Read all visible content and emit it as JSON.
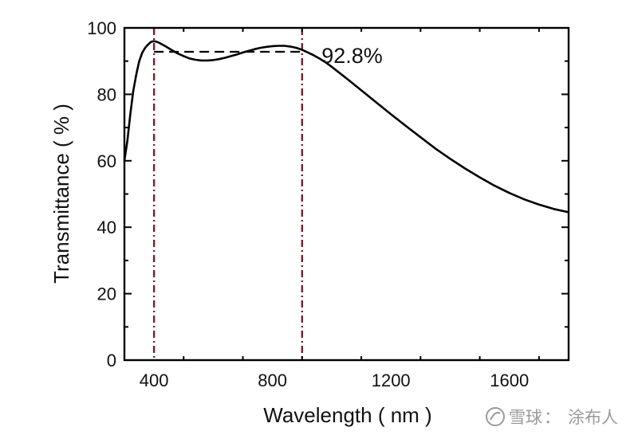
{
  "chart_data": {
    "type": "line",
    "xlabel": "Wavelength ( nm )",
    "ylabel": "Transmittance ( % )",
    "xlim": [
      300,
      1800
    ],
    "ylim": [
      0,
      100
    ],
    "xticks": [
      400,
      800,
      1200,
      1600
    ],
    "yticks": [
      0,
      20,
      40,
      60,
      80,
      100
    ],
    "grid": false,
    "series": [
      {
        "color": "#000000",
        "x": [
          300,
          310,
          320,
          330,
          340,
          350,
          360,
          370,
          380,
          390,
          400,
          410,
          420,
          440,
          460,
          480,
          500,
          520,
          540,
          560,
          580,
          600,
          620,
          640,
          660,
          680,
          700,
          720,
          740,
          760,
          780,
          800,
          820,
          840,
          860,
          880,
          900,
          920,
          940,
          960,
          980,
          1000,
          1050,
          1100,
          1150,
          1200,
          1250,
          1300,
          1350,
          1400,
          1450,
          1500,
          1550,
          1600,
          1650,
          1700,
          1750,
          1800
        ],
        "y": [
          60,
          66,
          74,
          81,
          86,
          90,
          92.5,
          94,
          95,
          95.8,
          96,
          95.8,
          95.4,
          94.4,
          93.3,
          92.3,
          91.5,
          90.8,
          90.4,
          90.2,
          90.2,
          90.3,
          90.6,
          91,
          91.5,
          92,
          92.6,
          93.1,
          93.6,
          94,
          94.3,
          94.5,
          94.6,
          94.6,
          94.4,
          94,
          93.4,
          92.6,
          91.7,
          90.7,
          89.6,
          88.3,
          84.8,
          81.2,
          77.6,
          74,
          70.5,
          67.1,
          63.7,
          60.6,
          57.7,
          55,
          52.5,
          50.3,
          48.4,
          46.8,
          45.5,
          44.5
        ]
      }
    ],
    "reference_lines": [
      {
        "orientation": "vertical",
        "x": 400,
        "style": "dash-dot",
        "color": "#7a1f2b"
      },
      {
        "orientation": "vertical",
        "x": 900,
        "style": "dash-dot",
        "color": "#7a1f2b"
      },
      {
        "orientation": "horizontal",
        "y": 92.8,
        "from": 400,
        "to": 900,
        "style": "dashed",
        "color": "#000000"
      }
    ],
    "annotations": [
      {
        "text": "92.8%",
        "x": 1060,
        "y": 92.8
      }
    ]
  },
  "watermark": {
    "brand": "雪球",
    "separator": "：",
    "author": "涂布人"
  }
}
